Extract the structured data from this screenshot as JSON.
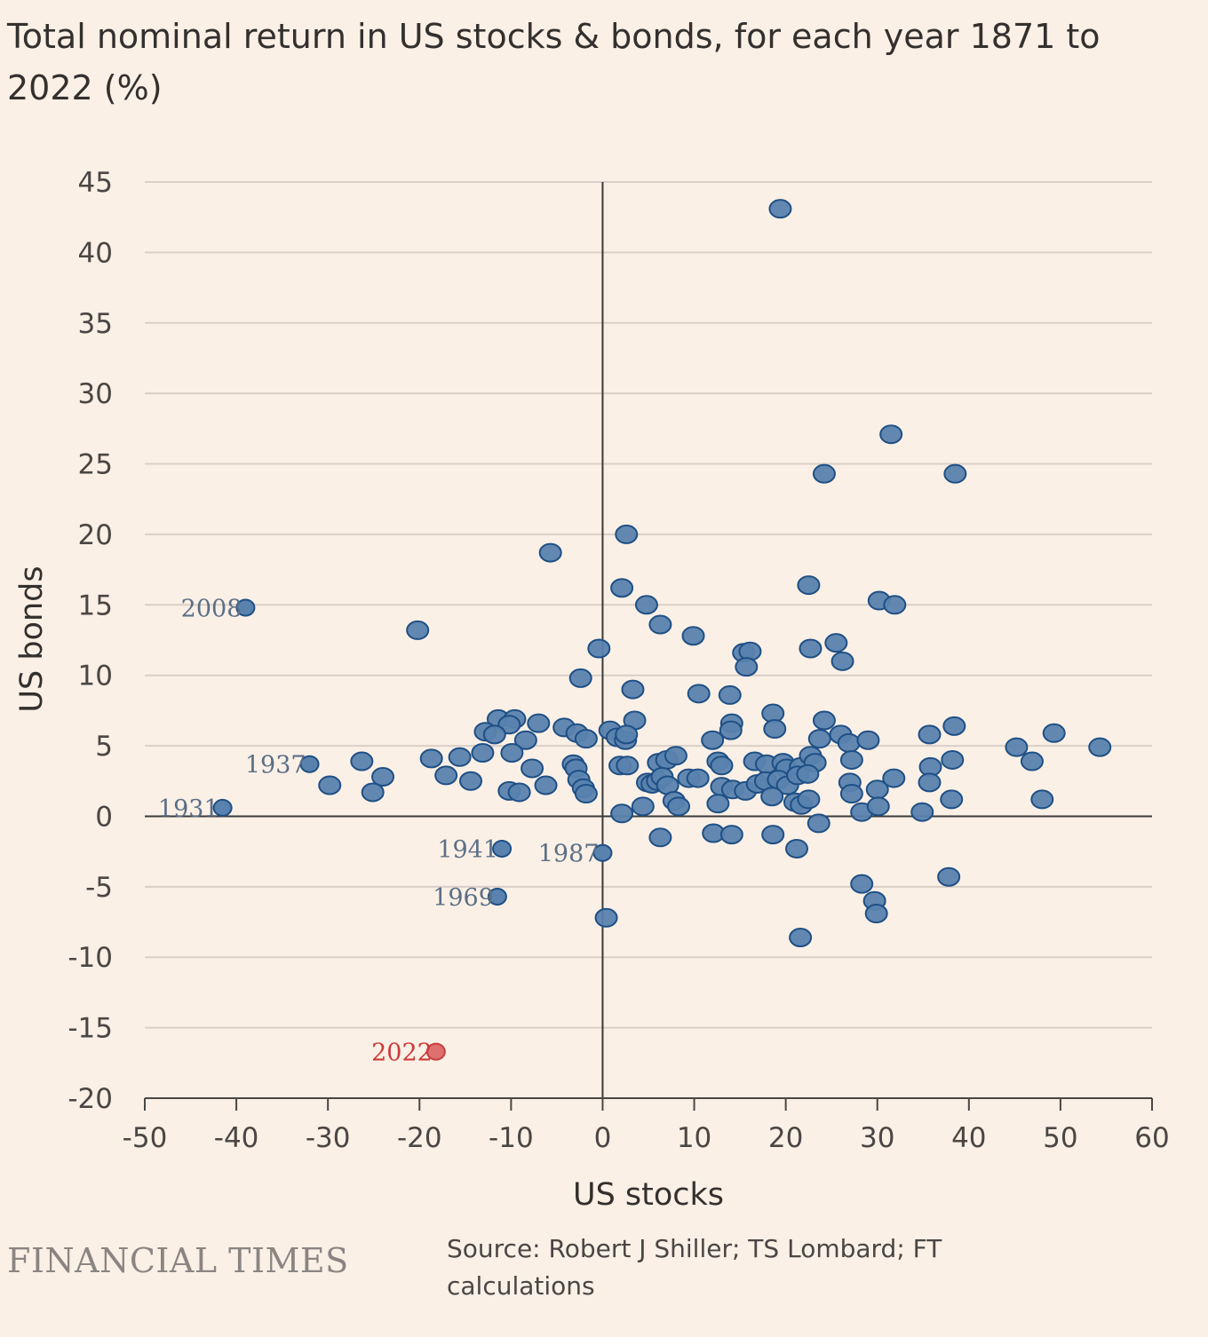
{
  "title": "Total nominal return in US stocks & bonds, for each year 1871 to 2022 (%)",
  "footer": {
    "logo_text": "FINANCIAL TIMES",
    "source": "Source: Robert J Shiller; TS Lombard; FT calculations"
  },
  "colors": {
    "background": "#fbf0e6",
    "point_fill": "#5a82ae",
    "point_stroke": "#1e4f85",
    "highlight_fill": "#e07070",
    "highlight_stroke": "#c63d3d",
    "gridline": "#d9cfc6",
    "zero_line": "#3a3a3a"
  },
  "chart_data": {
    "type": "scatter",
    "title": "Total nominal return in US stocks & bonds, for each year 1871 to 2022 (%)",
    "xlabel": "US stocks",
    "ylabel": "US bonds",
    "xlim": [
      -50,
      60
    ],
    "ylim": [
      -20,
      45
    ],
    "x_ticks": [
      "-50",
      "-40",
      "-30",
      "-20",
      "-10",
      "0",
      "10",
      "20",
      "30",
      "40",
      "50",
      "60"
    ],
    "y_ticks": [
      "45",
      "40",
      "35",
      "30",
      "25",
      "20",
      "15",
      "10",
      "5",
      "0",
      "-5",
      "-10",
      "-15",
      "-20"
    ],
    "grid": "horizontal",
    "annotations": [
      {
        "label": "2008",
        "x": -39,
        "y": 14.8
      },
      {
        "label": "1937",
        "x": -32,
        "y": 3.7
      },
      {
        "label": "1931",
        "x": -41.5,
        "y": 0.6
      },
      {
        "label": "1941",
        "x": -11,
        "y": -2.3
      },
      {
        "label": "1987",
        "x": 0,
        "y": -2.6
      },
      {
        "label": "1969",
        "x": -11.5,
        "y": -5.7
      },
      {
        "label": "2022",
        "x": -18.2,
        "y": -16.7,
        "highlight": true
      }
    ],
    "points": [
      [
        19.4,
        43.1
      ],
      [
        31.5,
        27.1
      ],
      [
        24.2,
        24.3
      ],
      [
        38.5,
        24.3
      ],
      [
        2.6,
        20.0
      ],
      [
        -5.7,
        18.7
      ],
      [
        2.1,
        16.2
      ],
      [
        22.5,
        16.4
      ],
      [
        30.2,
        15.3
      ],
      [
        31.9,
        15.0
      ],
      [
        4.8,
        15.0
      ],
      [
        6.3,
        13.6
      ],
      [
        9.9,
        12.8
      ],
      [
        -20.2,
        13.2
      ],
      [
        -0.4,
        11.9
      ],
      [
        22.7,
        11.9
      ],
      [
        25.5,
        12.3
      ],
      [
        15.4,
        11.6
      ],
      [
        16.1,
        11.7
      ],
      [
        26.2,
        11.0
      ],
      [
        15.7,
        10.6
      ],
      [
        -2.4,
        9.8
      ],
      [
        3.3,
        9.0
      ],
      [
        10.5,
        8.7
      ],
      [
        13.9,
        8.6
      ],
      [
        18.6,
        7.3
      ],
      [
        3.5,
        6.8
      ],
      [
        24.2,
        6.8
      ],
      [
        14.1,
        6.6
      ],
      [
        38.4,
        6.4
      ],
      [
        -11.4,
        6.9
      ],
      [
        -9.6,
        6.9
      ],
      [
        -10.2,
        6.5
      ],
      [
        -7.0,
        6.6
      ],
      [
        -4.2,
        6.3
      ],
      [
        -2.8,
        5.9
      ],
      [
        -1.8,
        5.5
      ],
      [
        0.8,
        6.1
      ],
      [
        1.6,
        5.6
      ],
      [
        2.5,
        5.4
      ],
      [
        2.6,
        5.8
      ],
      [
        -12.8,
        6.0
      ],
      [
        -11.8,
        5.8
      ],
      [
        -8.4,
        5.4
      ],
      [
        14.0,
        6.1
      ],
      [
        18.8,
        6.2
      ],
      [
        12.0,
        5.4
      ],
      [
        23.7,
        5.5
      ],
      [
        26.0,
        5.8
      ],
      [
        26.9,
        5.2
      ],
      [
        29.0,
        5.4
      ],
      [
        35.7,
        5.8
      ],
      [
        49.3,
        5.9
      ],
      [
        45.2,
        4.9
      ],
      [
        54.3,
        4.9
      ],
      [
        -13.1,
        4.5
      ],
      [
        -9.9,
        4.5
      ],
      [
        -18.7,
        4.1
      ],
      [
        -15.6,
        4.2
      ],
      [
        -26.3,
        3.9
      ],
      [
        -3.2,
        3.7
      ],
      [
        -2.9,
        3.4
      ],
      [
        -7.7,
        3.4
      ],
      [
        1.9,
        3.6
      ],
      [
        2.7,
        3.6
      ],
      [
        6.1,
        3.8
      ],
      [
        7.0,
        4.0
      ],
      [
        8.0,
        4.3
      ],
      [
        12.6,
        3.9
      ],
      [
        13.0,
        3.6
      ],
      [
        16.6,
        3.9
      ],
      [
        17.9,
        3.7
      ],
      [
        19.7,
        3.8
      ],
      [
        20.1,
        3.4
      ],
      [
        21.6,
        3.5
      ],
      [
        22.7,
        4.3
      ],
      [
        23.2,
        3.8
      ],
      [
        27.2,
        4.0
      ],
      [
        35.8,
        3.5
      ],
      [
        38.2,
        4.0
      ],
      [
        46.9,
        3.9
      ],
      [
        -17.1,
        2.9
      ],
      [
        -24.0,
        2.8
      ],
      [
        -29.8,
        2.2
      ],
      [
        -25.1,
        1.7
      ],
      [
        -14.4,
        2.5
      ],
      [
        -10.2,
        1.8
      ],
      [
        -9.1,
        1.7
      ],
      [
        -6.2,
        2.2
      ],
      [
        -2.6,
        2.6
      ],
      [
        -2.1,
        2.0
      ],
      [
        -1.8,
        1.6
      ],
      [
        4.9,
        2.4
      ],
      [
        5.4,
        2.3
      ],
      [
        6.0,
        2.5
      ],
      [
        6.5,
        2.8
      ],
      [
        7.1,
        2.2
      ],
      [
        9.4,
        2.7
      ],
      [
        10.4,
        2.7
      ],
      [
        13.0,
        2.1
      ],
      [
        14.2,
        1.9
      ],
      [
        15.6,
        1.8
      ],
      [
        16.9,
        2.3
      ],
      [
        17.8,
        2.5
      ],
      [
        19.2,
        2.6
      ],
      [
        20.2,
        2.2
      ],
      [
        21.3,
        2.9
      ],
      [
        22.4,
        3.0
      ],
      [
        27.0,
        2.4
      ],
      [
        27.2,
        1.6
      ],
      [
        30.0,
        1.9
      ],
      [
        31.8,
        2.7
      ],
      [
        35.7,
        2.4
      ],
      [
        7.8,
        1.1
      ],
      [
        8.3,
        0.7
      ],
      [
        12.6,
        0.9
      ],
      [
        18.5,
        1.4
      ],
      [
        21.0,
        1.0
      ],
      [
        21.7,
        0.8
      ],
      [
        22.5,
        1.2
      ],
      [
        28.3,
        0.3
      ],
      [
        30.1,
        0.7
      ],
      [
        34.9,
        0.3
      ],
      [
        38.1,
        1.2
      ],
      [
        48.0,
        1.2
      ],
      [
        2.1,
        0.2
      ],
      [
        4.4,
        0.7
      ],
      [
        23.6,
        -0.5
      ],
      [
        12.1,
        -1.2
      ],
      [
        14.1,
        -1.3
      ],
      [
        18.6,
        -1.3
      ],
      [
        6.3,
        -1.5
      ],
      [
        21.2,
        -2.3
      ],
      [
        28.3,
        -4.8
      ],
      [
        29.7,
        -6.0
      ],
      [
        29.9,
        -6.9
      ],
      [
        37.8,
        -4.3
      ],
      [
        0.4,
        -7.2
      ],
      [
        21.6,
        -8.6
      ]
    ]
  }
}
